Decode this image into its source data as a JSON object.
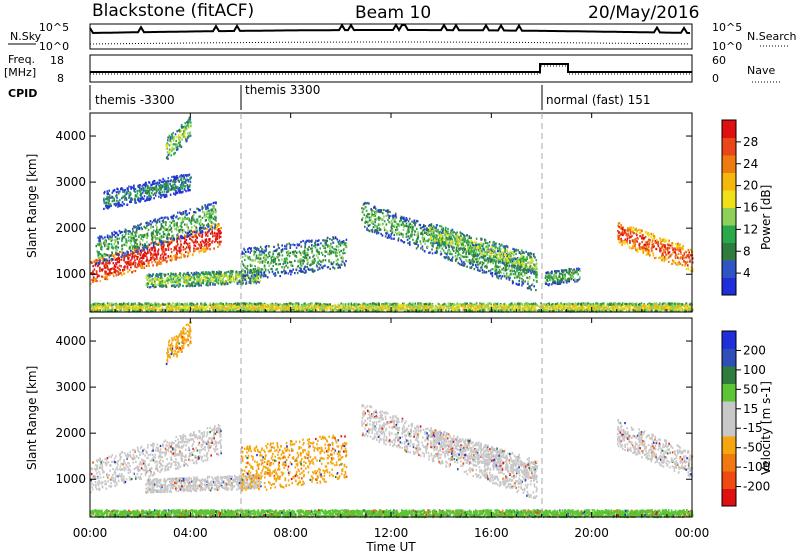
{
  "header": {
    "station": "Blackstone (fitACF)",
    "beam": "Beam 10",
    "date": "20/May/2016"
  },
  "panels": {
    "nsky_label": "N.Sky",
    "nsearch_label": "N.Search",
    "freq_label": "Freq.",
    "freq_unit": "[MHz]",
    "nave_label": "Nave",
    "cpid_label": "CPID",
    "left_ticks_top": [
      "10^5",
      "10^0"
    ],
    "right_ticks_top": [
      "10^5",
      "10^0"
    ],
    "freq_ticks": [
      "18",
      "8"
    ],
    "nave_ticks": [
      "60",
      "0"
    ]
  },
  "cpid_segments": [
    {
      "label": "themis -3300",
      "start_h": 0
    },
    {
      "label": "themis 3300",
      "start_h": 6
    },
    {
      "label": "normal (fast) 151",
      "start_h": 18
    }
  ],
  "colors": {
    "power": [
      "#1f2fd9",
      "#2f55c4",
      "#2f7d3e",
      "#2aa84a",
      "#8fd05a",
      "#f0e01a",
      "#f5b70c",
      "#ef7b10",
      "#e9471a",
      "#e01010"
    ],
    "velocity": [
      "#e01010",
      "#ef4a12",
      "#f07a10",
      "#f5a60f",
      "#c8c8c8",
      "#c8c8c8",
      "#5cc535",
      "#2f7d3e",
      "#2f4fb8",
      "#1f2fd9"
    ]
  },
  "chart_data": [
    {
      "type": "heatmap",
      "title": "",
      "xlabel": "Time UT",
      "ylabel": "Slant Range [km]",
      "colorbar_label": "Power [dB]",
      "colorbar_ticks": [
        "4",
        "8",
        "12",
        "16",
        "20",
        "24",
        "28"
      ],
      "x_ticks": [
        "00:00",
        "04:00",
        "08:00",
        "12:00",
        "16:00",
        "20:00",
        "00:00"
      ],
      "y_ticks": [
        "1000",
        "2000",
        "3000",
        "4000"
      ],
      "xlim": [
        0,
        24
      ],
      "ylim": [
        180,
        4500
      ],
      "bands": [
        {
          "t0": 0.0,
          "t1": 5.2,
          "r0": 1050,
          "r1": 1850,
          "w": 260,
          "level": 9
        },
        {
          "t0": 0.2,
          "t1": 5.0,
          "r0": 1500,
          "r1": 2300,
          "w": 300,
          "level": 3
        },
        {
          "t0": 2.2,
          "t1": 6.8,
          "r0": 850,
          "r1": 950,
          "w": 150,
          "level": 4
        },
        {
          "t0": 6.0,
          "t1": 10.2,
          "r0": 1200,
          "r1": 1500,
          "w": 350,
          "level": 3
        },
        {
          "t0": 10.8,
          "t1": 17.8,
          "r0": 2300,
          "r1": 900,
          "w": 300,
          "level": 3
        },
        {
          "t0": 13.5,
          "t1": 17.8,
          "r0": 1900,
          "r1": 1200,
          "w": 220,
          "level": 4
        },
        {
          "t0": 18.1,
          "t1": 19.5,
          "r0": 900,
          "r1": 1000,
          "w": 150,
          "level": 3
        },
        {
          "t0": 21.0,
          "t1": 24.0,
          "r0": 1900,
          "r1": 1300,
          "w": 250,
          "level": 8
        },
        {
          "t0": 3.0,
          "t1": 4.0,
          "r0": 3700,
          "r1": 4200,
          "w": 250,
          "level": 4
        },
        {
          "t0": 0.5,
          "t1": 4.0,
          "r0": 2600,
          "r1": 3000,
          "w": 200,
          "level": 2
        },
        {
          "t0": 0.0,
          "t1": 24.0,
          "r0": 280,
          "r1": 280,
          "w": 90,
          "level": 5
        }
      ]
    },
    {
      "type": "heatmap",
      "title": "",
      "xlabel": "Time UT",
      "ylabel": "Slant Range [km]",
      "colorbar_label": "Velocity [m s-1]",
      "colorbar_ticks": [
        "-200",
        "-100",
        "-50",
        "-15",
        "15",
        "50",
        "100",
        "200"
      ],
      "x_ticks": [
        "00:00",
        "04:00",
        "08:00",
        "12:00",
        "16:00",
        "20:00",
        "00:00"
      ],
      "y_ticks": [
        "1000",
        "2000",
        "3000",
        "4000"
      ],
      "xlim": [
        0,
        24
      ],
      "ylim": [
        180,
        4500
      ],
      "bands": [
        {
          "t0": 0.0,
          "t1": 5.2,
          "r0": 1050,
          "r1": 1850,
          "w": 350,
          "level": 4
        },
        {
          "t0": 2.2,
          "t1": 6.8,
          "r0": 850,
          "r1": 950,
          "w": 150,
          "level": 4
        },
        {
          "t0": 6.0,
          "t1": 10.2,
          "r0": 1200,
          "r1": 1500,
          "w": 500,
          "level": 3
        },
        {
          "t0": 10.8,
          "t1": 17.8,
          "r0": 2300,
          "r1": 900,
          "w": 350,
          "level": 4
        },
        {
          "t0": 13.5,
          "t1": 17.8,
          "r0": 1900,
          "r1": 1200,
          "w": 220,
          "level": 4
        },
        {
          "t0": 21.0,
          "t1": 24.0,
          "r0": 2000,
          "r1": 1300,
          "w": 300,
          "level": 4
        },
        {
          "t0": 3.0,
          "t1": 4.0,
          "r0": 3700,
          "r1": 4200,
          "w": 250,
          "level": 3
        },
        {
          "t0": 0.0,
          "t1": 24.0,
          "r0": 250,
          "r1": 250,
          "w": 80,
          "level": 6
        }
      ]
    }
  ]
}
